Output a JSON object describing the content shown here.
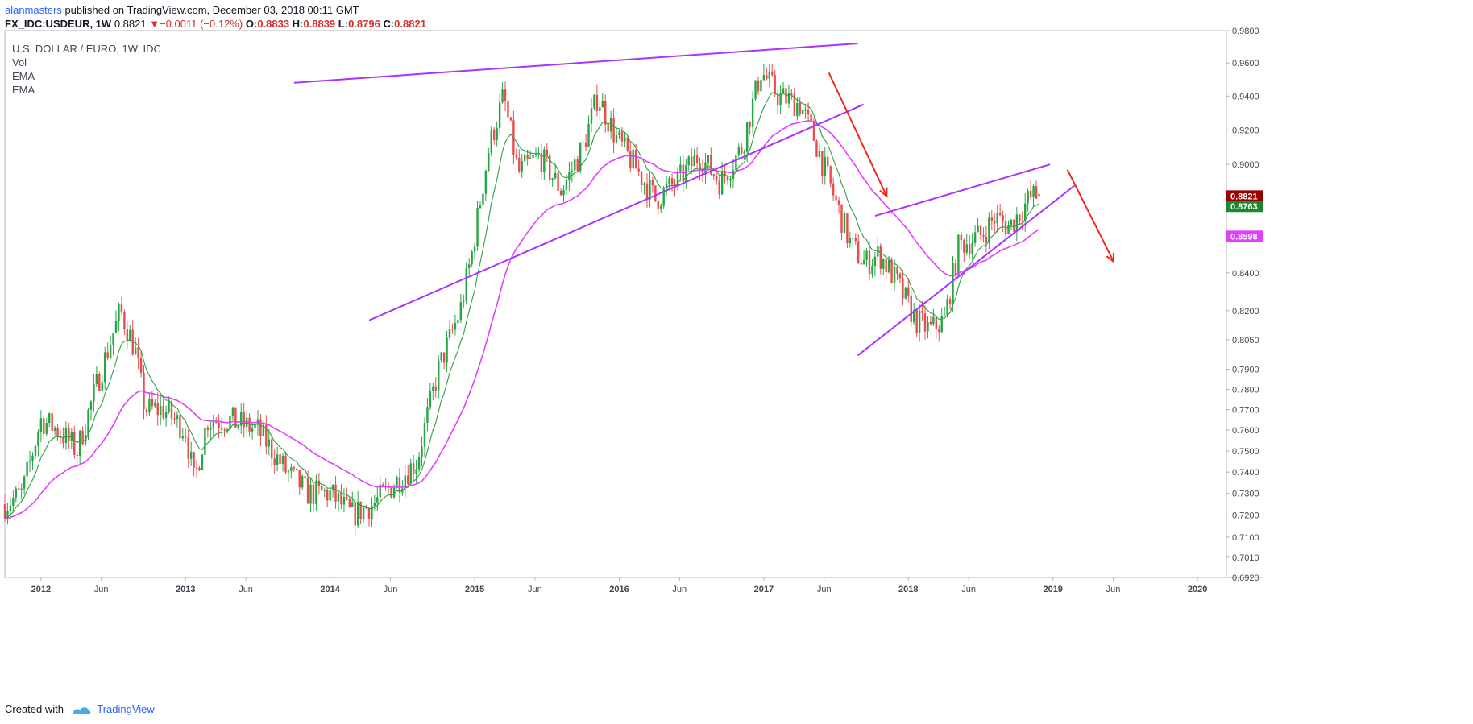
{
  "header": {
    "author": "alanmasters",
    "published": "published on TradingView.com, December 03, 2018 00:11 GMT",
    "symbol": "FX_IDC:USDEUR, 1W",
    "last": "0.8821",
    "change": "−0.0011 (−0.12%)",
    "o_label": "O:",
    "o": "0.8833",
    "h_label": "H:",
    "h": "0.8839",
    "l_label": "L:",
    "l": "0.8796",
    "c_label": "C:",
    "c": "0.8821"
  },
  "legend": {
    "title": "U.S. DOLLAR / EURO, 1W, IDC",
    "items": [
      "Vol",
      "EMA",
      "EMA"
    ]
  },
  "footer": {
    "created": "Created with",
    "brand": "TradingView"
  },
  "colors": {
    "up": "#26a641",
    "down": "#e84c4c",
    "ema_fast": "#2ea043",
    "ema_slow": "#e040fb",
    "trendline": "#aa33ff",
    "arrow": "#f2291a",
    "last_badge": "#990000",
    "ema_fast_badge": "#178a2f",
    "ema_slow_badge": "#e040fb"
  },
  "chart_data": {
    "type": "candlestick",
    "scale": "log",
    "ylim": [
      0.692,
      0.98
    ],
    "x_ticks": [
      "2012",
      "Jun",
      "2013",
      "Jun",
      "2014",
      "Jun",
      "2015",
      "Jun",
      "2016",
      "Jun",
      "2017",
      "Jun",
      "2018",
      "Jun",
      "2019",
      "Jun",
      "2020"
    ],
    "y_ticks": [
      "0.9800",
      "0.9600",
      "0.9400",
      "0.9200",
      "0.9000",
      "0.8400",
      "0.8200",
      "0.8050",
      "0.7900",
      "0.7800",
      "0.7700",
      "0.7600",
      "0.7500",
      "0.7400",
      "0.7300",
      "0.7200",
      "0.7100",
      "0.7010",
      "0.6920"
    ],
    "price_badges": [
      {
        "label": "0.8821",
        "value": 0.8821,
        "kind": "last"
      },
      {
        "label": "0.8763",
        "value": 0.8763,
        "kind": "ema_fast"
      },
      {
        "label": "0.8598",
        "value": 0.8598,
        "kind": "ema_slow"
      }
    ],
    "series": [
      {
        "name": "EMA",
        "kind": "fast"
      },
      {
        "name": "EMA",
        "kind": "slow"
      }
    ],
    "close_anchors": [
      {
        "t": 2011.75,
        "c": 0.725
      },
      {
        "t": 2011.87,
        "c": 0.73
      },
      {
        "t": 2012.0,
        "c": 0.765
      },
      {
        "t": 2012.12,
        "c": 0.76
      },
      {
        "t": 2012.25,
        "c": 0.75
      },
      {
        "t": 2012.42,
        "c": 0.79
      },
      {
        "t": 2012.55,
        "c": 0.82
      },
      {
        "t": 2012.65,
        "c": 0.8
      },
      {
        "t": 2012.72,
        "c": 0.77
      },
      {
        "t": 2012.85,
        "c": 0.77
      },
      {
        "t": 2013.0,
        "c": 0.76
      },
      {
        "t": 2013.06,
        "c": 0.735
      },
      {
        "t": 2013.15,
        "c": 0.765
      },
      {
        "t": 2013.3,
        "c": 0.765
      },
      {
        "t": 2013.5,
        "c": 0.76
      },
      {
        "t": 2013.7,
        "c": 0.74
      },
      {
        "t": 2013.85,
        "c": 0.73
      },
      {
        "t": 2014.0,
        "c": 0.73
      },
      {
        "t": 2014.15,
        "c": 0.72
      },
      {
        "t": 2014.3,
        "c": 0.725
      },
      {
        "t": 2014.45,
        "c": 0.735
      },
      {
        "t": 2014.6,
        "c": 0.745
      },
      {
        "t": 2014.75,
        "c": 0.79
      },
      {
        "t": 2014.9,
        "c": 0.82
      },
      {
        "t": 2014.98,
        "c": 0.85
      },
      {
        "t": 2015.1,
        "c": 0.91
      },
      {
        "t": 2015.2,
        "c": 0.94
      },
      {
        "t": 2015.3,
        "c": 0.895
      },
      {
        "t": 2015.45,
        "c": 0.905
      },
      {
        "t": 2015.6,
        "c": 0.885
      },
      {
        "t": 2015.75,
        "c": 0.91
      },
      {
        "t": 2015.85,
        "c": 0.94
      },
      {
        "t": 2015.98,
        "c": 0.915
      },
      {
        "t": 2016.1,
        "c": 0.9
      },
      {
        "t": 2016.25,
        "c": 0.88
      },
      {
        "t": 2016.4,
        "c": 0.89
      },
      {
        "t": 2016.55,
        "c": 0.905
      },
      {
        "t": 2016.7,
        "c": 0.89
      },
      {
        "t": 2016.85,
        "c": 0.91
      },
      {
        "t": 2016.98,
        "c": 0.955
      },
      {
        "t": 2017.1,
        "c": 0.94
      },
      {
        "t": 2017.25,
        "c": 0.935
      },
      {
        "t": 2017.35,
        "c": 0.915
      },
      {
        "t": 2017.45,
        "c": 0.89
      },
      {
        "t": 2017.6,
        "c": 0.855
      },
      {
        "t": 2017.7,
        "c": 0.845
      },
      {
        "t": 2017.8,
        "c": 0.85
      },
      {
        "t": 2017.92,
        "c": 0.835
      },
      {
        "t": 2018.05,
        "c": 0.815
      },
      {
        "t": 2018.15,
        "c": 0.81
      },
      {
        "t": 2018.25,
        "c": 0.815
      },
      {
        "t": 2018.35,
        "c": 0.855
      },
      {
        "t": 2018.5,
        "c": 0.86
      },
      {
        "t": 2018.6,
        "c": 0.87
      },
      {
        "t": 2018.7,
        "c": 0.865
      },
      {
        "t": 2018.85,
        "c": 0.882
      },
      {
        "t": 2018.92,
        "c": 0.8821
      }
    ],
    "trendlines": [
      {
        "x": [
          2013.75,
          2017.65
        ],
        "y": [
          0.948,
          0.972
        ]
      },
      {
        "x": [
          2014.27,
          2017.69
        ],
        "y": [
          0.815,
          0.935
        ]
      },
      {
        "x": [
          2017.77,
          2018.98
        ],
        "y": [
          0.871,
          0.9
        ]
      },
      {
        "x": [
          2017.65,
          2019.15
        ],
        "y": [
          0.797,
          0.888
        ]
      }
    ],
    "arrows": [
      {
        "x": [
          2017.45,
          2017.85
        ],
        "y": [
          0.954,
          0.882
        ]
      },
      {
        "x": [
          2019.1,
          2019.42
        ],
        "y": [
          0.897,
          0.846
        ]
      }
    ]
  }
}
